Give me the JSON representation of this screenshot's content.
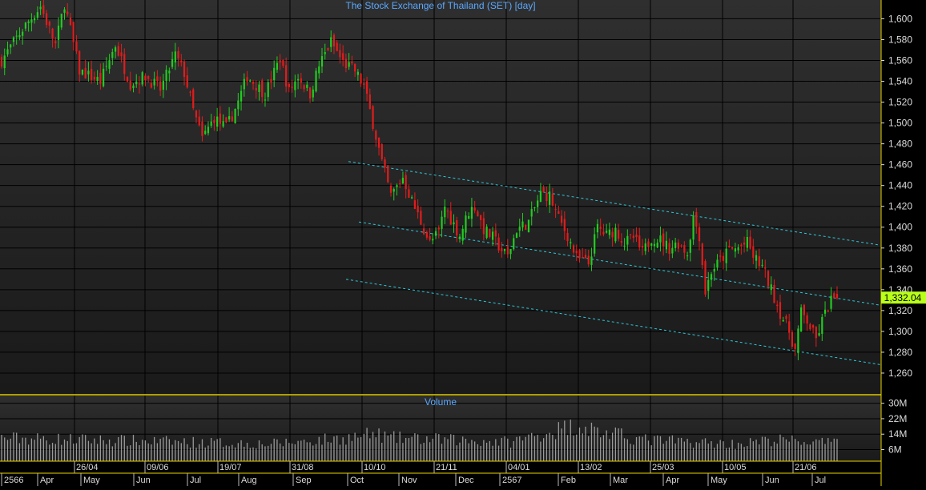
{
  "chart_data": {
    "type": "candlestick",
    "title": "The Stock Exchange of Thailand (SET) [day]",
    "volume_title": "Volume",
    "price_axis": {
      "ylim": [
        1240,
        1618
      ],
      "ticks": [
        1260,
        1280,
        1300,
        1320,
        1340,
        1360,
        1380,
        1400,
        1420,
        1440,
        1460,
        1480,
        1500,
        1520,
        1540,
        1560,
        1580,
        1600
      ],
      "tick_labels": [
        "1,260",
        "1,280",
        "1,300",
        "1,320",
        "1,340",
        "1,360",
        "1,380",
        "1,400",
        "1,420",
        "1,440",
        "1,460",
        "1,480",
        "1,500",
        "1,520",
        "1,540",
        "1,560",
        "1,580",
        "1,600"
      ]
    },
    "volume_axis": {
      "ylim": [
        0,
        34
      ],
      "ticks": [
        6,
        14,
        22,
        30
      ],
      "tick_labels": [
        "6M",
        "14M",
        "22M",
        "30M"
      ]
    },
    "last_price_label": "1,332.04",
    "last_price": 1332.04,
    "date_labels": [
      "26/04",
      "09/06",
      "19/07",
      "31/08",
      "10/10",
      "21/11",
      "04/01",
      "13/02",
      "25/03",
      "10/05",
      "21/06"
    ],
    "month_labels": [
      "2566",
      "Apr",
      "May",
      "Jun",
      "Jul",
      "Aug",
      "Sep",
      "Oct",
      "Nov",
      "Dec",
      "2567",
      "Feb",
      "Mar",
      "Apr",
      "May",
      "Jun",
      "Jul"
    ],
    "trend_levels": [
      {
        "name": "upper",
        "points": [
          [
            0,
            1463
          ],
          [
            1,
            1383
          ]
        ]
      },
      {
        "name": "middle",
        "points": [
          [
            0,
            1405
          ],
          [
            1,
            1325
          ]
        ]
      },
      {
        "name": "lower",
        "points": [
          [
            0,
            1350
          ],
          [
            1,
            1268
          ]
        ]
      }
    ],
    "grid": true,
    "colors": {
      "background": "#000000",
      "plot_top": "#303030",
      "plot_bottom": "#1a1a1a",
      "up": "#22cc22",
      "down": "#e21c1c",
      "title": "#5aa8ff",
      "axis_text": "#dcdcdc",
      "last_price_bg": "#b8ff1a",
      "trend": "#2ec8d8",
      "frame": "#e8d200"
    },
    "ohlc_path_anchors": [
      [
        0,
        1560
      ],
      [
        7,
        1590
      ],
      [
        13,
        1612
      ],
      [
        18,
        1575
      ],
      [
        21,
        1615
      ],
      [
        26,
        1550
      ],
      [
        33,
        1540
      ],
      [
        38,
        1575
      ],
      [
        43,
        1538
      ],
      [
        48,
        1545
      ],
      [
        53,
        1532
      ],
      [
        58,
        1565
      ],
      [
        61,
        1548
      ],
      [
        64,
        1512
      ],
      [
        67,
        1485
      ],
      [
        71,
        1505
      ],
      [
        75,
        1495
      ],
      [
        79,
        1520
      ],
      [
        82,
        1545
      ],
      [
        88,
        1528
      ],
      [
        93,
        1562
      ],
      [
        96,
        1530
      ],
      [
        99,
        1545
      ],
      [
        103,
        1528
      ],
      [
        106,
        1555
      ],
      [
        110,
        1578
      ],
      [
        114,
        1558
      ],
      [
        118,
        1550
      ],
      [
        121,
        1535
      ],
      [
        124,
        1500
      ],
      [
        127,
        1462
      ],
      [
        130,
        1430
      ],
      [
        134,
        1448
      ],
      [
        137,
        1425
      ],
      [
        140,
        1405
      ],
      [
        143,
        1385
      ],
      [
        146,
        1395
      ],
      [
        148,
        1420
      ],
      [
        150,
        1408
      ],
      [
        153,
        1392
      ],
      [
        156,
        1415
      ],
      [
        158,
        1420
      ],
      [
        161,
        1398
      ],
      [
        164,
        1390
      ],
      [
        167,
        1378
      ],
      [
        169,
        1372
      ],
      [
        172,
        1398
      ],
      [
        176,
        1405
      ],
      [
        180,
        1432
      ],
      [
        183,
        1430
      ],
      [
        186,
        1408
      ],
      [
        189,
        1392
      ],
      [
        192,
        1370
      ],
      [
        196,
        1365
      ],
      [
        199,
        1400
      ],
      [
        202,
        1392
      ],
      [
        205,
        1398
      ],
      [
        208,
        1385
      ],
      [
        211,
        1390
      ],
      [
        214,
        1375
      ],
      [
        217,
        1390
      ],
      [
        220,
        1388
      ],
      [
        223,
        1380
      ],
      [
        226,
        1385
      ],
      [
        229,
        1375
      ],
      [
        231,
        1410
      ],
      [
        233,
        1392
      ],
      [
        235,
        1338
      ],
      [
        237,
        1358
      ],
      [
        240,
        1368
      ],
      [
        243,
        1378
      ],
      [
        246,
        1380
      ],
      [
        249,
        1385
      ],
      [
        251,
        1372
      ],
      [
        254,
        1362
      ],
      [
        257,
        1340
      ],
      [
        260,
        1318
      ],
      [
        263,
        1300
      ],
      [
        265,
        1282
      ],
      [
        267,
        1318
      ],
      [
        269,
        1310
      ],
      [
        272,
        1292
      ],
      [
        274,
        1310
      ],
      [
        277,
        1330
      ],
      [
        279,
        1332.04
      ]
    ],
    "volume_anchors": [
      [
        0,
        12
      ],
      [
        30,
        11
      ],
      [
        60,
        10
      ],
      [
        90,
        9
      ],
      [
        115,
        12
      ],
      [
        125,
        14
      ],
      [
        130,
        12
      ],
      [
        150,
        11
      ],
      [
        170,
        10
      ],
      [
        185,
        16
      ],
      [
        193,
        19
      ],
      [
        200,
        15
      ],
      [
        215,
        11
      ],
      [
        230,
        10
      ],
      [
        245,
        9
      ],
      [
        260,
        11
      ],
      [
        279,
        9
      ]
    ],
    "n_bars": 280
  }
}
